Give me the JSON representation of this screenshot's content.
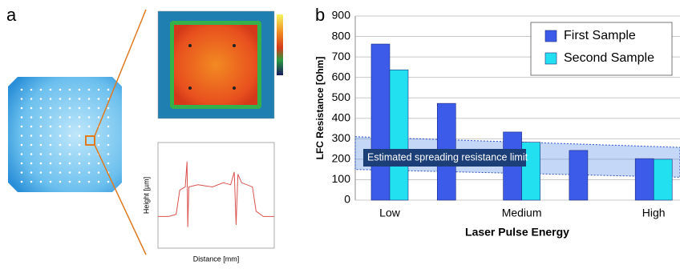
{
  "panel_labels": [
    "a",
    "b"
  ],
  "chart_data": [
    {
      "type": "line",
      "xlabel": "Distance [mm]",
      "ylabel": "Height [µm]",
      "x": [
        0,
        0.3,
        0.5,
        0.6,
        0.75,
        0.8,
        0.82,
        0.85,
        1.1,
        1.5,
        1.8,
        2.0,
        2.1,
        2.15,
        2.2,
        2.3,
        2.6,
        2.7,
        2.9,
        3.2
      ],
      "series": [
        {
          "color": "#d9534f",
          "values": [
            30,
            30,
            32,
            55,
            58,
            82,
            20,
            58,
            60,
            58,
            62,
            60,
            72,
            22,
            70,
            62,
            58,
            35,
            30,
            30
          ]
        }
      ],
      "xlim": [
        0,
        3.2
      ],
      "ylim": [
        0,
        100
      ]
    },
    {
      "type": "bar",
      "xlabel": "Laser Pulse Energy",
      "ylabel": "LFC Resistance [Ohm]",
      "categories": [
        "Low",
        null,
        "Medium",
        null,
        "High"
      ],
      "series": [
        {
          "name": "First Sample",
          "color": "#3b5be8",
          "values": [
            763,
            473,
            333,
            243,
            203
          ]
        },
        {
          "name": "Second Sample",
          "color": "#22e0f0",
          "values": [
            637,
            null,
            283,
            null,
            200
          ]
        }
      ],
      "ylim": [
        0,
        900
      ],
      "yticks": [
        0,
        100,
        200,
        300,
        400,
        500,
        600,
        700,
        800,
        900
      ],
      "grid": true,
      "legend": "upper right",
      "annotation": "Estimated spreading resistance limit",
      "limit_band": {
        "upper": [
          310,
          258
        ],
        "lower": [
          150,
          112
        ]
      }
    }
  ]
}
